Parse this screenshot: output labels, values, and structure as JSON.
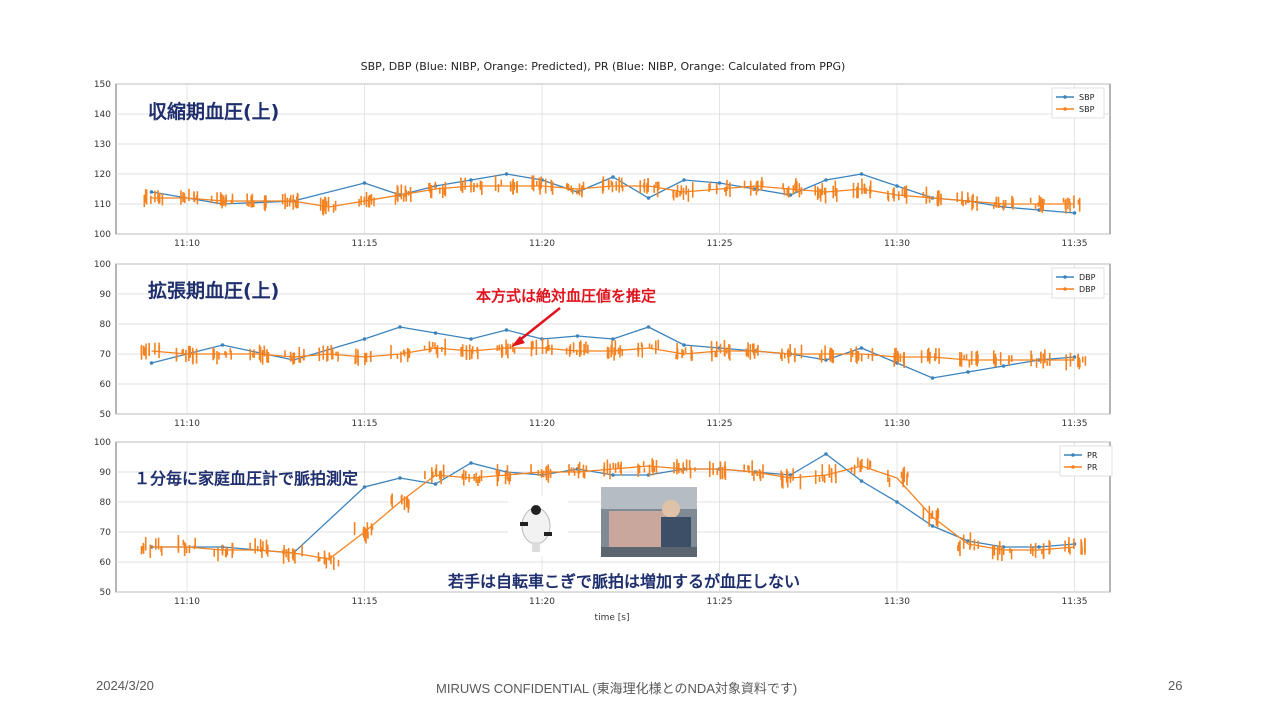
{
  "chart_title": "SBP, DBP (Blue: NIBP, Orange: Predicted), PR (Blue: NIBP, Orange: Calculated from PPG)",
  "xlabel": "time [s]",
  "footer": {
    "date": "2024/3/20",
    "confidential": "MIRUWS CONFIDENTIAL (東海理化様とのNDA対象資料です)",
    "page": "26"
  },
  "colors": {
    "blue": "#3b83bd",
    "orange": "#f5821f",
    "annot_navy": "#1f2f6e",
    "annot_red": "#e0141e",
    "grid": "#d9d9d9"
  },
  "chart_data": [
    {
      "type": "line",
      "panel_label": "収縮期血圧(上)",
      "xlim": [
        "11:08",
        "11:36"
      ],
      "x_ticks": [
        "11:10",
        "11:15",
        "11:20",
        "11:25",
        "11:30",
        "11:35"
      ],
      "ylim": [
        100,
        150
      ],
      "y_ticks": [
        100,
        110,
        120,
        130,
        140,
        150
      ],
      "grid": true,
      "legend": "top-right",
      "series": [
        {
          "name": "SBP",
          "color": "#3b83bd",
          "x": [
            "11:09",
            "11:11",
            "11:13",
            "11:15",
            "11:16",
            "11:17",
            "11:18",
            "11:19",
            "11:20",
            "11:21",
            "11:22",
            "11:23",
            "11:24",
            "11:25",
            "11:26",
            "11:27",
            "11:28",
            "11:29",
            "11:30",
            "11:31",
            "11:32",
            "11:33",
            "11:34",
            "11:35"
          ],
          "values": [
            114,
            110,
            111,
            117,
            113,
            116,
            118,
            120,
            118,
            114,
            119,
            112,
            118,
            117,
            115,
            113,
            118,
            120,
            116,
            112,
            111,
            109,
            108,
            107
          ]
        },
        {
          "name": "SBP",
          "color": "#f5821f",
          "x": [
            "11:09",
            "11:10",
            "11:11",
            "11:12",
            "11:13",
            "11:14",
            "11:15",
            "11:16",
            "11:17",
            "11:18",
            "11:19",
            "11:20",
            "11:21",
            "11:22",
            "11:23",
            "11:24",
            "11:25",
            "11:26",
            "11:27",
            "11:28",
            "11:29",
            "11:30",
            "11:31",
            "11:32",
            "11:33",
            "11:34",
            "11:35"
          ],
          "values": [
            112,
            112,
            111,
            111,
            111,
            109,
            111,
            113,
            115,
            116,
            116,
            116,
            115,
            116,
            116,
            114,
            115,
            116,
            115,
            114,
            115,
            113,
            112,
            111,
            110,
            110,
            110
          ]
        }
      ]
    },
    {
      "type": "line",
      "panel_label": "拡張期血圧(上)",
      "annotation": "本方式は絶対血圧値を推定",
      "xlim": [
        "11:08",
        "11:36"
      ],
      "x_ticks": [
        "11:10",
        "11:15",
        "11:20",
        "11:25",
        "11:30",
        "11:35"
      ],
      "ylim": [
        50,
        100
      ],
      "y_ticks": [
        50,
        60,
        70,
        80,
        90,
        100
      ],
      "grid": true,
      "legend": "top-right",
      "series": [
        {
          "name": "DBP",
          "color": "#3b83bd",
          "x": [
            "11:09",
            "11:11",
            "11:13",
            "11:15",
            "11:16",
            "11:17",
            "11:18",
            "11:19",
            "11:20",
            "11:21",
            "11:22",
            "11:23",
            "11:24",
            "11:25",
            "11:26",
            "11:27",
            "11:28",
            "11:29",
            "11:30",
            "11:31",
            "11:32",
            "11:33",
            "11:34",
            "11:35"
          ],
          "values": [
            67,
            73,
            68,
            75,
            79,
            77,
            75,
            78,
            75,
            76,
            75,
            79,
            73,
            72,
            71,
            70,
            68,
            72,
            67,
            62,
            64,
            66,
            68,
            69
          ]
        },
        {
          "name": "DBP",
          "color": "#f5821f",
          "x": [
            "11:09",
            "11:10",
            "11:11",
            "11:12",
            "11:13",
            "11:14",
            "11:15",
            "11:16",
            "11:17",
            "11:18",
            "11:19",
            "11:20",
            "11:21",
            "11:22",
            "11:23",
            "11:24",
            "11:25",
            "11:26",
            "11:27",
            "11:28",
            "11:29",
            "11:30",
            "11:31",
            "11:32",
            "11:33",
            "11:34",
            "11:35"
          ],
          "values": [
            71,
            70,
            70,
            70,
            69,
            70,
            69,
            70,
            72,
            71,
            72,
            72,
            71,
            71,
            72,
            70,
            71,
            71,
            70,
            70,
            70,
            69,
            69,
            68,
            68,
            68,
            68
          ]
        }
      ]
    },
    {
      "type": "line",
      "panel_label": "１分毎に家庭血圧計で脈拍測定",
      "annotation": "若手は自転車こぎで脈拍は増加するが血圧しない",
      "xlim": [
        "11:08",
        "11:36"
      ],
      "x_ticks": [
        "11:10",
        "11:15",
        "11:20",
        "11:25",
        "11:30",
        "11:35"
      ],
      "ylim": [
        50,
        100
      ],
      "y_ticks": [
        50,
        60,
        70,
        80,
        90,
        100
      ],
      "grid": true,
      "legend": "top-right",
      "series": [
        {
          "name": "PR",
          "color": "#3b83bd",
          "x": [
            "11:09",
            "11:11",
            "11:13",
            "11:15",
            "11:16",
            "11:17",
            "11:18",
            "11:19",
            "11:20",
            "11:21",
            "11:22",
            "11:23",
            "11:24",
            "11:25",
            "11:26",
            "11:27",
            "11:28",
            "11:29",
            "11:30",
            "11:31",
            "11:32",
            "11:33",
            "11:34",
            "11:35"
          ],
          "values": [
            65,
            65,
            63,
            85,
            88,
            86,
            93,
            90,
            89,
            91,
            89,
            89,
            91,
            91,
            90,
            89,
            96,
            87,
            80,
            72,
            67,
            65,
            65,
            66
          ]
        },
        {
          "name": "PR",
          "color": "#f5821f",
          "x": [
            "11:09",
            "11:10",
            "11:11",
            "11:12",
            "11:13",
            "11:14",
            "11:15",
            "11:16",
            "11:17",
            "11:18",
            "11:19",
            "11:20",
            "11:21",
            "11:22",
            "11:23",
            "11:24",
            "11:25",
            "11:26",
            "11:27",
            "11:28",
            "11:29",
            "11:30",
            "11:31",
            "11:32",
            "11:33",
            "11:34",
            "11:35"
          ],
          "values": [
            65,
            65,
            64,
            64,
            63,
            61,
            70,
            80,
            89,
            88,
            89,
            90,
            90,
            91,
            92,
            91,
            91,
            90,
            88,
            89,
            92,
            88,
            75,
            66,
            64,
            64,
            65
          ]
        }
      ]
    }
  ]
}
